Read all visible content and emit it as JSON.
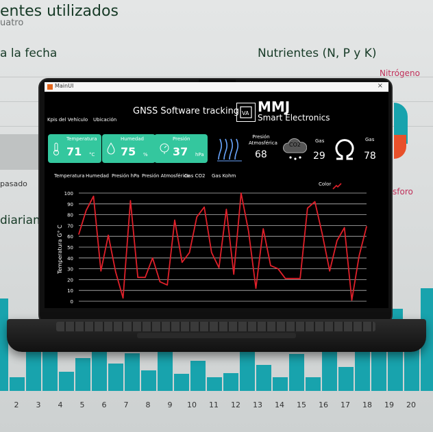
{
  "background": {
    "title": "entes utilizados",
    "subtitle": "uatro",
    "section_date": "a la fecha",
    "section_nutrients": "Nutrientes (N, P y K)",
    "nitrogen": "Nitrógeno",
    "phosphorus": "sforo",
    "past": "pasado",
    "daily": "diariam",
    "axis_labels": [
      "2",
      "3",
      "4",
      "5",
      "6",
      "7",
      "8",
      "9",
      "10",
      "11",
      "12",
      "13",
      "14",
      "15",
      "16",
      "17",
      "18",
      "19",
      "20"
    ]
  },
  "window": {
    "title": "MainUI",
    "close": "×"
  },
  "header": {
    "app_title": "GNSS Software tracking",
    "brand_short": "MMJ",
    "brand_long": "Smart Electronics"
  },
  "nav": {
    "kpis": "Kpis del Vehículo",
    "location": "Ubicación"
  },
  "cards": [
    {
      "label": "Temperatura",
      "value": "71",
      "unit": "°C"
    },
    {
      "label": "Humedad",
      "value": "75",
      "unit": "%"
    },
    {
      "label": "Presión",
      "value": "37",
      "unit": "hPa"
    }
  ],
  "metrics": {
    "pressure_atm_label": "Presión Atmosférica",
    "pressure_atm_value": "68",
    "co2_icon_text": "CO2",
    "gas1_label": "Gas",
    "gas1_value": "29",
    "gas2_label": "Gas",
    "gas2_value": "78"
  },
  "tabs": [
    "Temperatura",
    "Humedad",
    "Presión hPa",
    "Presión Atmosférica",
    "Gas CO2",
    "Gas Kohm"
  ],
  "legend": {
    "label": "Color"
  },
  "colors": {
    "accent": "#34c79e",
    "line": "#e0202a",
    "teal": "#18a3ad"
  },
  "chart_data": {
    "type": "line",
    "ylabel": "Temperatura G° C",
    "yticks": [
      "100",
      "90",
      "80",
      "70",
      "60",
      "50",
      "40",
      "30",
      "20",
      "10",
      "0"
    ],
    "ylim": [
      0,
      100
    ],
    "grid": true,
    "series": [
      {
        "values": [
          62,
          84,
          97,
          28,
          61,
          27,
          3,
          93,
          22,
          22,
          40,
          18,
          15,
          75,
          36,
          45,
          78,
          87,
          45,
          31,
          85,
          25,
          100,
          65,
          12,
          67,
          33,
          30,
          21,
          21,
          21,
          86,
          92,
          62,
          28,
          56,
          68,
          1,
          42,
          69
        ]
      }
    ]
  }
}
